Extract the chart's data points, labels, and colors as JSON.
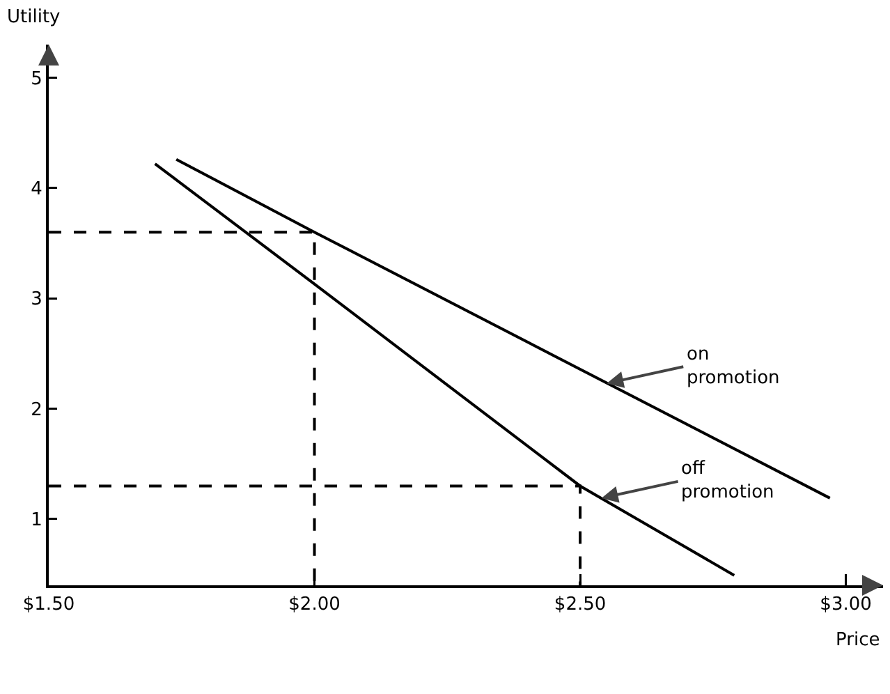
{
  "chart_data": {
    "type": "line",
    "xlabel": "Price",
    "ylabel": "Utility",
    "xlim": [
      1.5,
      3.07
    ],
    "ylim": [
      0.4,
      5.3
    ],
    "xticks": [
      {
        "value": 1.5,
        "label": "$1.50"
      },
      {
        "value": 2,
        "label": "$2.00"
      },
      {
        "value": 2.5,
        "label": "$2.50"
      },
      {
        "value": 3,
        "label": "$3.00"
      }
    ],
    "yticks": [
      1,
      2,
      3,
      4,
      5
    ],
    "marker": "none",
    "series": [
      {
        "color": "#000000",
        "x": [
          1.74,
          2.0,
          2.97
        ],
        "values": [
          4.26,
          3.6,
          1.19
        ]
      },
      {
        "color": "#000000",
        "x": [
          1.7,
          2.0,
          2.5,
          2.79
        ],
        "values": [
          4.22,
          3.13,
          1.3,
          0.49
        ]
      },
      {
        "color": "#000000",
        "line_style": "dashed",
        "x": [
          1.5,
          2.0,
          2.0
        ],
        "values": [
          3.6,
          3.6,
          0.4
        ]
      },
      {
        "color": "#000000",
        "line_style": "dashed",
        "x": [
          1.5,
          2.5,
          2.5
        ],
        "values": [
          1.3,
          1.3,
          0.4
        ]
      }
    ],
    "annotations": [
      {
        "text": "on\npromotion",
        "x": 2.55,
        "y": 2.23
      },
      {
        "text": "off\npromotion",
        "x": 2.54,
        "y": 1.19
      }
    ]
  }
}
